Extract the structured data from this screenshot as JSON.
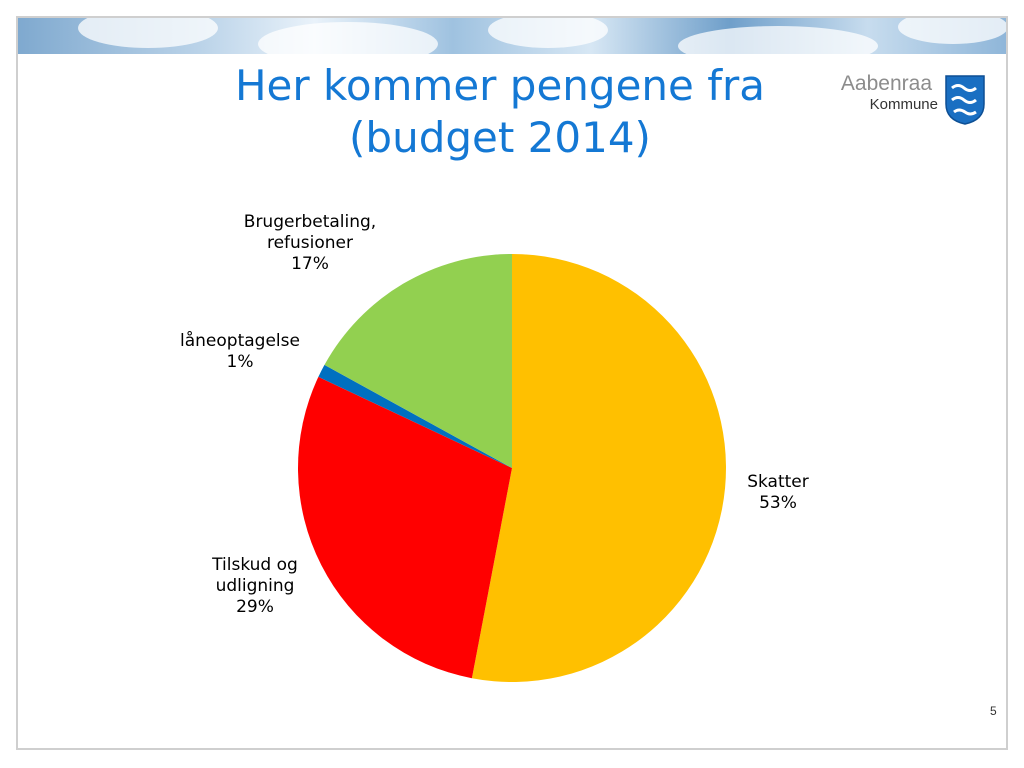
{
  "slide": {
    "title_line1": "Her kommer pengene fra",
    "title_line2": "(budget 2014)",
    "page_number": "5"
  },
  "logo": {
    "line1": "Aabenraa",
    "line2": "Kommune",
    "icon": "coat-of-arms-icon"
  },
  "chart_data": {
    "type": "pie",
    "title": "",
    "start_angle_deg": 0,
    "direction": "clockwise",
    "slices": [
      {
        "label_line1": "Skatter",
        "label_line2": "",
        "value": 53,
        "value_text": "53%",
        "color": "#FFC000"
      },
      {
        "label_line1": "Tilskud og",
        "label_line2": "udligning",
        "value": 29,
        "value_text": "29%",
        "color": "#FF0000"
      },
      {
        "label_line1": "låneoptagelse",
        "label_line2": "",
        "value": 1,
        "value_text": "1%",
        "color": "#0070C0"
      },
      {
        "label_line1": "Brugerbetaling,",
        "label_line2": "refusioner",
        "value": 17,
        "value_text": "17%",
        "color": "#92D050"
      }
    ]
  }
}
